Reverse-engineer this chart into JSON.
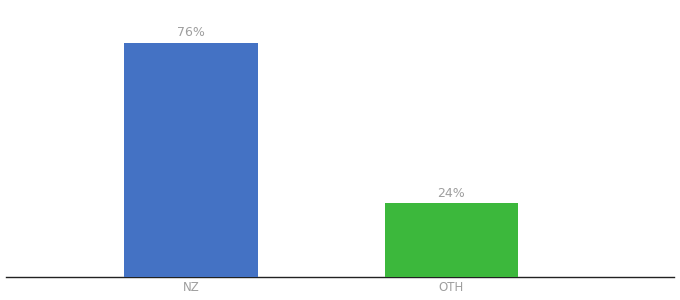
{
  "categories": [
    "NZ",
    "OTH"
  ],
  "values": [
    76,
    24
  ],
  "bar_colors": [
    "#4472c4",
    "#3cb83c"
  ],
  "bar_labels": [
    "76%",
    "24%"
  ],
  "background_color": "#ffffff",
  "text_color": "#9e9e9e",
  "label_fontsize": 9,
  "tick_fontsize": 8.5,
  "ylim": [
    0,
    88
  ],
  "bar_width": 0.18,
  "x_positions": [
    0.3,
    0.65
  ],
  "xlim": [
    0.05,
    0.95
  ]
}
